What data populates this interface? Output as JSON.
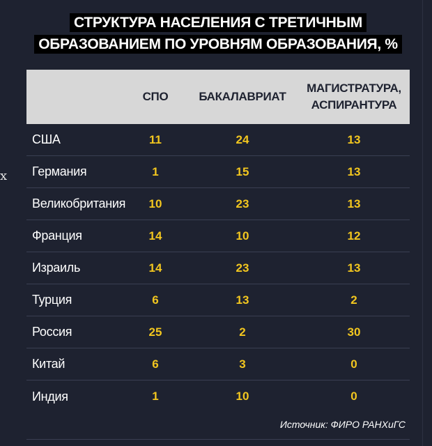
{
  "title_lines": [
    "СТРУКТУРА НАСЕЛЕНИЯ С ТРЕТИЧНЫМ",
    "ОБРАЗОВАНИЕМ ПО УРОВНЯМ ОБРАЗОВАНИЯ, %"
  ],
  "edge_glyph": "х",
  "source": "Источник: ФИРО РАНХиГС",
  "colors": {
    "background": "#1e2230",
    "header_background": "#d7d7d7",
    "value_text": "#f2c61f",
    "title_background": "#000000"
  },
  "chart_data": {
    "type": "table",
    "title": "СТРУКТУРА НАСЕЛЕНИЯ С ТРЕТИЧНЫМ ОБРАЗОВАНИЕМ ПО УРОВНЯМ ОБРАЗОВАНИЯ, %",
    "columns": [
      "СПО",
      "БАКАЛАВРИАТ",
      "МАГИСТРАТУРА, АСПИРАНТУРА"
    ],
    "column_lines": [
      [
        "СПО"
      ],
      [
        "БАКАЛАВРИАТ"
      ],
      [
        "МАГИСТРАТУРА,",
        "АСПИРАНТУРА"
      ]
    ],
    "rows": [
      {
        "name": "США",
        "values": [
          11,
          24,
          13
        ]
      },
      {
        "name": "Германия",
        "values": [
          1,
          15,
          13
        ]
      },
      {
        "name": "Великобритания",
        "values": [
          10,
          23,
          13
        ]
      },
      {
        "name": "Франция",
        "values": [
          14,
          10,
          12
        ]
      },
      {
        "name": "Израиль",
        "values": [
          14,
          23,
          13
        ]
      },
      {
        "name": "Турция",
        "values": [
          6,
          13,
          2
        ]
      },
      {
        "name": "Россия",
        "values": [
          25,
          2,
          30
        ]
      },
      {
        "name": "Китай",
        "values": [
          6,
          3,
          0
        ]
      },
      {
        "name": "Индия",
        "values": [
          1,
          10,
          0
        ]
      }
    ]
  }
}
